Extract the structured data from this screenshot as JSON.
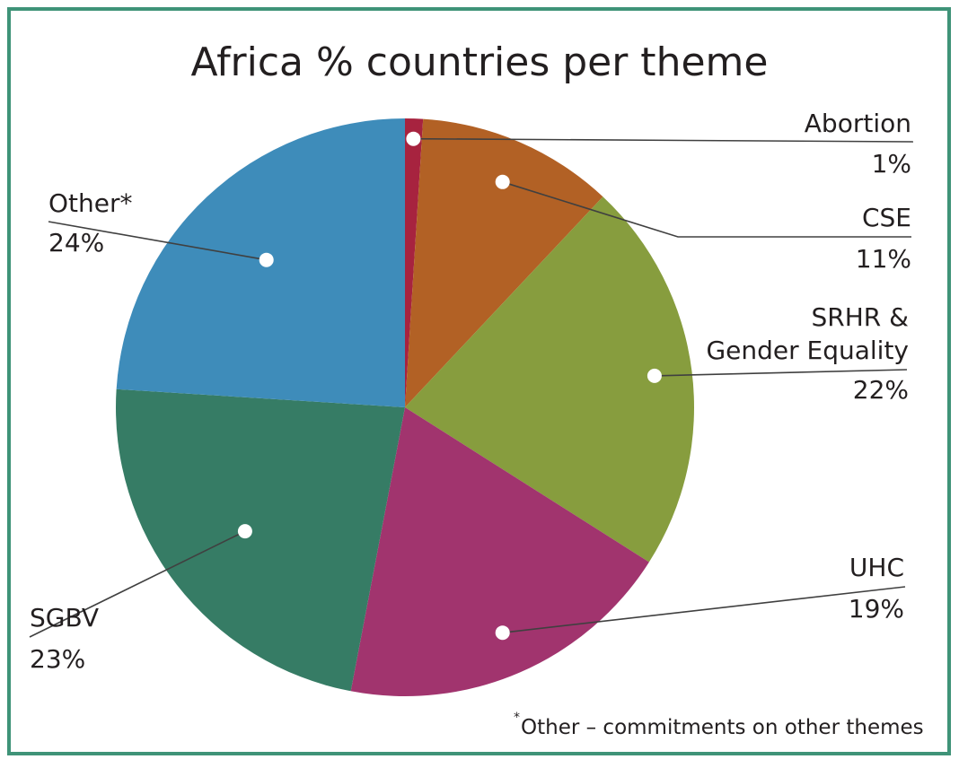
{
  "chart_data": {
    "type": "pie",
    "title": "Africa % countries per theme",
    "slices": [
      {
        "label": "Abortion",
        "value": 1,
        "value_label": "1%",
        "color": "#a7233f"
      },
      {
        "label": "CSE",
        "value": 11,
        "value_label": "11%",
        "color": "#b26125"
      },
      {
        "label": "SRHR & Gender Equality",
        "label_lines": [
          "SRHR &",
          "Gender Equality"
        ],
        "value": 22,
        "value_label": "22%",
        "color": "#879d3e"
      },
      {
        "label": "UHC",
        "value": 19,
        "value_label": "19%",
        "color": "#a1346e"
      },
      {
        "label": "SGBV",
        "value": 23,
        "value_label": "23%",
        "color": "#367c65"
      },
      {
        "label": "Other*",
        "value": 24,
        "value_label": "24%",
        "color": "#3e8cba"
      }
    ],
    "footnote": {
      "marker": "*",
      "text": "Other – commitments on other themes"
    }
  },
  "colors": {
    "frame": "#3f9378",
    "text": "#231f20",
    "leader": "#404040"
  }
}
